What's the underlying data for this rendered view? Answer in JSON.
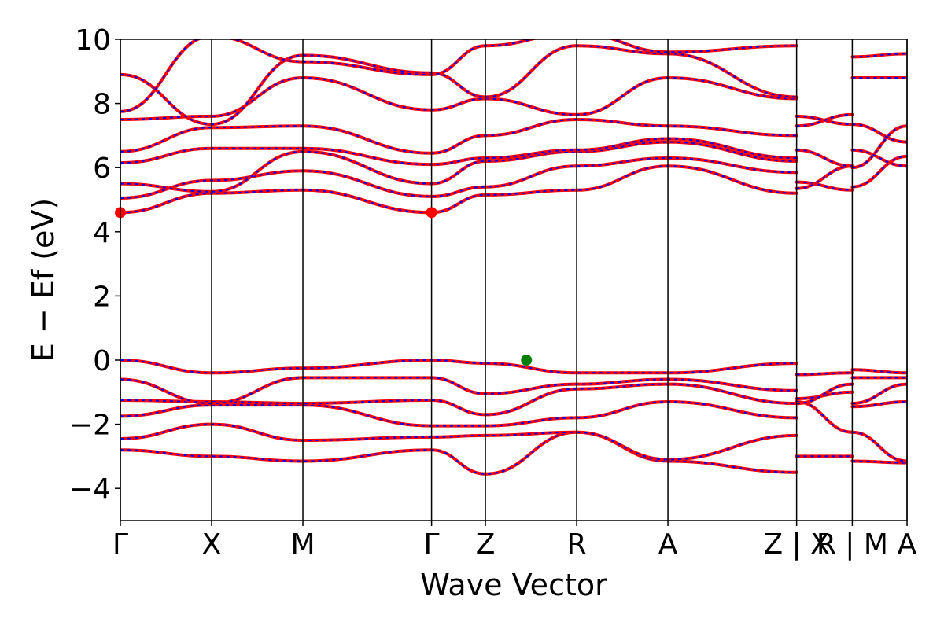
{
  "chart_data": {
    "type": "line",
    "title": "",
    "xlabel": "Wave Vector",
    "ylabel": "E − Ef (eV)",
    "ylim": [
      -5,
      10
    ],
    "yticks": [
      -4,
      -2,
      0,
      2,
      4,
      6,
      8,
      10
    ],
    "ytick_labels": [
      "−4",
      "−2",
      "0",
      "2",
      "4",
      "6",
      "8",
      "10"
    ],
    "xlim": [
      0,
      8.62
    ],
    "high_symmetry_points": [
      {
        "label": "Γ",
        "x": 0.0
      },
      {
        "label": "X",
        "x": 1.0
      },
      {
        "label": "M",
        "x": 2.0
      },
      {
        "label": "Γ",
        "x": 3.41
      },
      {
        "label": "Z",
        "x": 4.0
      },
      {
        "label": "R",
        "x": 5.0
      },
      {
        "label": "A",
        "x": 6.0
      },
      {
        "label": "Z | X",
        "x": 7.41
      },
      {
        "label": "R | M",
        "x": 8.02
      },
      {
        "label": "A",
        "x": 8.62
      }
    ],
    "style": {
      "line_color": "#ff0000",
      "dash_color": "#0000ff",
      "cbm_marker_color": "#ff0000",
      "vbm_marker_color": "#008000",
      "grid": false
    },
    "markers": [
      {
        "name": "CBM",
        "x": 0.0,
        "y": 4.6,
        "color": "#ff0000"
      },
      {
        "name": "CBM",
        "x": 3.41,
        "y": 4.6,
        "color": "#ff0000"
      },
      {
        "name": "VBM",
        "x": 4.45,
        "y": 0.0,
        "color": "#008000"
      }
    ],
    "segments": [
      {
        "x": [
          0.0,
          1.0,
          2.0,
          3.41,
          4.0,
          5.0,
          6.0,
          7.41
        ],
        "series": [
          {
            "values": [
              -2.8,
              -3.0,
              -3.15,
              -2.8,
              -3.55,
              -2.25,
              -3.15,
              -3.5
            ]
          },
          {
            "values": [
              -2.45,
              -2.0,
              -2.5,
              -2.4,
              -2.35,
              -2.25,
              -3.1,
              -2.35
            ]
          },
          {
            "values": [
              -1.75,
              -1.4,
              -1.4,
              -2.05,
              -2.05,
              -1.8,
              -1.3,
              -1.8
            ]
          },
          {
            "values": [
              -1.25,
              -1.3,
              -1.35,
              -1.25,
              -1.7,
              -0.9,
              -0.75,
              -1.35
            ]
          },
          {
            "values": [
              -0.6,
              -1.35,
              -0.55,
              -0.55,
              -1.05,
              -0.75,
              -0.6,
              -0.95
            ]
          },
          {
            "values": [
              0.0,
              -0.4,
              -0.25,
              0.0,
              -0.1,
              -0.4,
              -0.4,
              -0.1
            ]
          },
          {
            "values": [
              4.6,
              5.2,
              5.3,
              4.6,
              5.15,
              5.3,
              6.05,
              5.2
            ]
          },
          {
            "values": [
              5.05,
              5.6,
              5.9,
              5.1,
              5.4,
              6.05,
              6.3,
              5.85
            ]
          },
          {
            "values": [
              5.5,
              5.25,
              6.5,
              5.5,
              6.2,
              6.5,
              6.8,
              6.2
            ]
          },
          {
            "values": [
              6.15,
              6.6,
              6.6,
              6.1,
              6.3,
              6.55,
              6.9,
              6.3
            ]
          },
          {
            "values": [
              6.5,
              7.25,
              7.3,
              6.45,
              7.0,
              7.5,
              7.3,
              7.0
            ]
          },
          {
            "values": [
              7.5,
              7.6,
              8.8,
              7.8,
              8.15,
              7.65,
              8.8,
              8.15
            ]
          },
          {
            "values": [
              8.9,
              7.35,
              9.5,
              8.95,
              8.2,
              9.8,
              9.55,
              8.2
            ]
          },
          {
            "values": [
              7.75,
              10.1,
              9.3,
              8.9,
              9.8,
              10.2,
              9.6,
              9.8
            ]
          }
        ]
      },
      {
        "x": [
          7.41,
          8.02
        ],
        "series": [
          {
            "values": [
              -3.0,
              -3.0
            ]
          },
          {
            "values": [
              -1.3,
              -2.25
            ]
          },
          {
            "values": [
              -1.2,
              -1.0
            ]
          },
          {
            "values": [
              -1.35,
              -0.75
            ]
          },
          {
            "values": [
              -0.45,
              -0.4
            ]
          },
          {
            "values": [
              5.55,
              5.3
            ]
          },
          {
            "values": [
              5.35,
              6.05
            ]
          },
          {
            "values": [
              6.55,
              6.05
            ]
          },
          {
            "values": [
              7.6,
              7.35
            ]
          },
          {
            "values": [
              7.3,
              7.65
            ]
          }
        ]
      },
      {
        "x": [
          8.02,
          8.62
        ],
        "series": [
          {
            "values": [
              -3.15,
              -3.2
            ]
          },
          {
            "values": [
              -2.25,
              -3.15
            ]
          },
          {
            "values": [
              -1.45,
              -1.3
            ]
          },
          {
            "values": [
              -1.35,
              -0.75
            ]
          },
          {
            "values": [
              -0.55,
              -0.55
            ]
          },
          {
            "values": [
              -0.3,
              -0.4
            ]
          },
          {
            "values": [
              5.4,
              6.35
            ]
          },
          {
            "values": [
              6.0,
              7.3
            ]
          },
          {
            "values": [
              6.55,
              6.05
            ]
          },
          {
            "values": [
              7.35,
              6.8
            ]
          },
          {
            "values": [
              8.8,
              8.8
            ]
          },
          {
            "values": [
              9.45,
              9.55
            ]
          }
        ]
      }
    ]
  }
}
